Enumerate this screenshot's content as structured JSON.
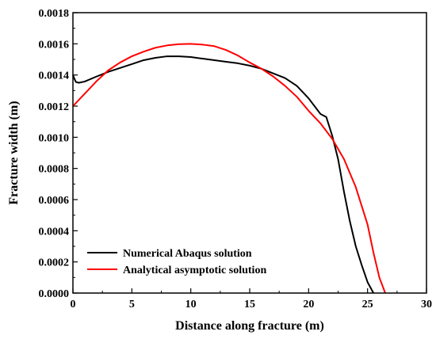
{
  "chart_data": {
    "type": "line",
    "xlabel": "Distance along fracture (m)",
    "ylabel": "Fracture width (m)",
    "xlim": [
      0,
      30
    ],
    "ylim": [
      0,
      0.0018
    ],
    "xticks": [
      "0",
      "5",
      "10",
      "15",
      "20",
      "25",
      "30"
    ],
    "yticks": [
      "0.0000",
      "0.0002",
      "0.0004",
      "0.0006",
      "0.0008",
      "0.0010",
      "0.0012",
      "0.0014",
      "0.0016",
      "0.0018"
    ],
    "grid": false,
    "legend_position": "bottom-left",
    "series": [
      {
        "name": "Numerical Abaqus solution",
        "color": "#000000",
        "x": [
          0,
          0.1,
          0.25,
          0.5,
          1,
          2,
          3,
          4,
          5,
          6,
          7,
          8,
          9,
          10,
          11,
          12,
          13,
          14,
          15,
          16,
          17,
          18,
          19,
          20,
          21,
          21.5,
          22,
          22.5,
          23,
          23.5,
          24,
          24.5,
          25,
          25.5
        ],
        "y": [
          0.0014,
          0.00138,
          0.001355,
          0.00135,
          0.001358,
          0.00139,
          0.00142,
          0.001445,
          0.00147,
          0.001495,
          0.00151,
          0.00152,
          0.00152,
          0.001515,
          0.001505,
          0.001495,
          0.001485,
          0.001475,
          0.00146,
          0.00144,
          0.00141,
          0.00138,
          0.00133,
          0.00125,
          0.00115,
          0.00113,
          0.00101,
          0.00086,
          0.00065,
          0.00046,
          0.0003,
          0.00018,
          7e-05,
          0.0
        ]
      },
      {
        "name": "Analytical asymptotic solution",
        "color": "#ff0000",
        "x": [
          0,
          1,
          2,
          3,
          4,
          5,
          6,
          7,
          8,
          9,
          10,
          11,
          12,
          13,
          14,
          15,
          16,
          17,
          18,
          19,
          20,
          21,
          22,
          23,
          24,
          25,
          25.5,
          26,
          26.5
        ],
        "y": [
          0.0012,
          0.00128,
          0.00136,
          0.00143,
          0.00148,
          0.00152,
          0.00155,
          0.001575,
          0.00159,
          0.001598,
          0.0016,
          0.001595,
          0.001585,
          0.00156,
          0.001525,
          0.00148,
          0.00144,
          0.00139,
          0.00133,
          0.00126,
          0.00117,
          0.00109,
          0.00099,
          0.00086,
          0.00068,
          0.00044,
          0.00026,
          0.0001,
          0.0
        ]
      }
    ]
  }
}
